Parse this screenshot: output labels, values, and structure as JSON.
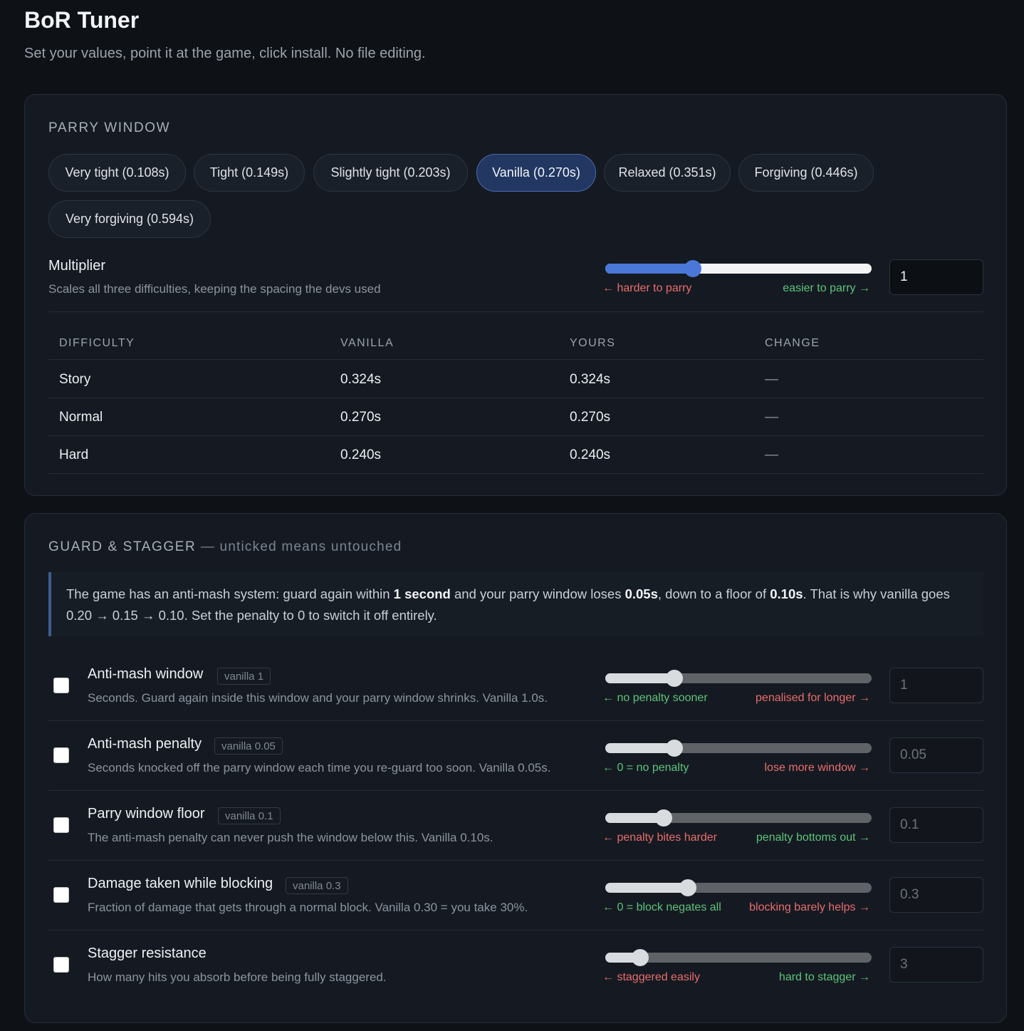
{
  "header": {
    "title": "BoR Tuner",
    "subtitle": "Set your values, point it at the game, click install. No file editing."
  },
  "parry": {
    "section_title": "PARRY WINDOW",
    "presets": [
      {
        "label": "Very tight (0.108s)",
        "active": false
      },
      {
        "label": "Tight (0.149s)",
        "active": false
      },
      {
        "label": "Slightly tight (0.203s)",
        "active": false
      },
      {
        "label": "Vanilla (0.270s)",
        "active": true
      },
      {
        "label": "Relaxed (0.351s)",
        "active": false
      },
      {
        "label": "Forgiving (0.446s)",
        "active": false
      },
      {
        "label": "Very forgiving (0.594s)",
        "active": false
      }
    ],
    "multiplier": {
      "title": "Multiplier",
      "description": "Scales all three difficulties, keeping the spacing the devs used",
      "hint_left": "← harder to parry",
      "hint_right": "easier to parry →",
      "value": "1",
      "slider_fraction": 0.33
    },
    "table": {
      "headers": [
        "DIFFICULTY",
        "VANILLA",
        "YOURS",
        "CHANGE"
      ],
      "rows": [
        [
          "Story",
          "0.324s",
          "0.324s",
          "—"
        ],
        [
          "Normal",
          "0.270s",
          "0.270s",
          "—"
        ],
        [
          "Hard",
          "0.240s",
          "0.240s",
          "—"
        ]
      ]
    }
  },
  "guard": {
    "section_title": "GUARD & STAGGER",
    "section_sub": " — unticked means untouched",
    "info": {
      "t1": "The game has an anti-mash system: guard again within ",
      "b1": "1 second",
      "t2": " and your parry window loses ",
      "b2": "0.05s",
      "t3": ", down to a floor of ",
      "b3": "0.10s",
      "t4": ". That is why vanilla goes 0.20 → 0.15 → 0.10. Set the penalty to 0 to switch it off entirely."
    },
    "rows": [
      {
        "title": "Anti-mash window",
        "badge": "vanilla 1",
        "description": "Seconds. Guard again inside this window and your parry window shrinks. Vanilla 1.0s.",
        "hint_left": "← no penalty sooner",
        "hint_right": "penalised for longer →",
        "left_color": "green",
        "right_color": "red",
        "value": "1",
        "slider_fraction": 0.26
      },
      {
        "title": "Anti-mash penalty",
        "badge": "vanilla 0.05",
        "description": "Seconds knocked off the parry window each time you re-guard too soon. Vanilla 0.05s.",
        "hint_left": "← 0 = no penalty",
        "hint_right": "lose more window →",
        "left_color": "green",
        "right_color": "red",
        "value": "0.05",
        "slider_fraction": 0.26
      },
      {
        "title": "Parry window floor",
        "badge": "vanilla 0.1",
        "description": "The anti-mash penalty can never push the window below this. Vanilla 0.10s.",
        "hint_left": "← penalty bites harder",
        "hint_right": "penalty bottoms out →",
        "left_color": "red",
        "right_color": "green",
        "value": "0.1",
        "slider_fraction": 0.22
      },
      {
        "title": "Damage taken while blocking",
        "badge": "vanilla 0.3",
        "description": "Fraction of damage that gets through a normal block. Vanilla 0.30 = you take 30%.",
        "hint_left": "← 0 = block negates all",
        "hint_right": "blocking barely helps →",
        "left_color": "green",
        "right_color": "red",
        "value": "0.3",
        "slider_fraction": 0.31
      },
      {
        "title": "Stagger resistance",
        "badge": "",
        "description": "How many hits you absorb before being fully staggered.",
        "hint_left": "← staggered easily",
        "hint_right": "hard to stagger →",
        "left_color": "red",
        "right_color": "green",
        "value": "3",
        "slider_fraction": 0.13
      }
    ]
  }
}
